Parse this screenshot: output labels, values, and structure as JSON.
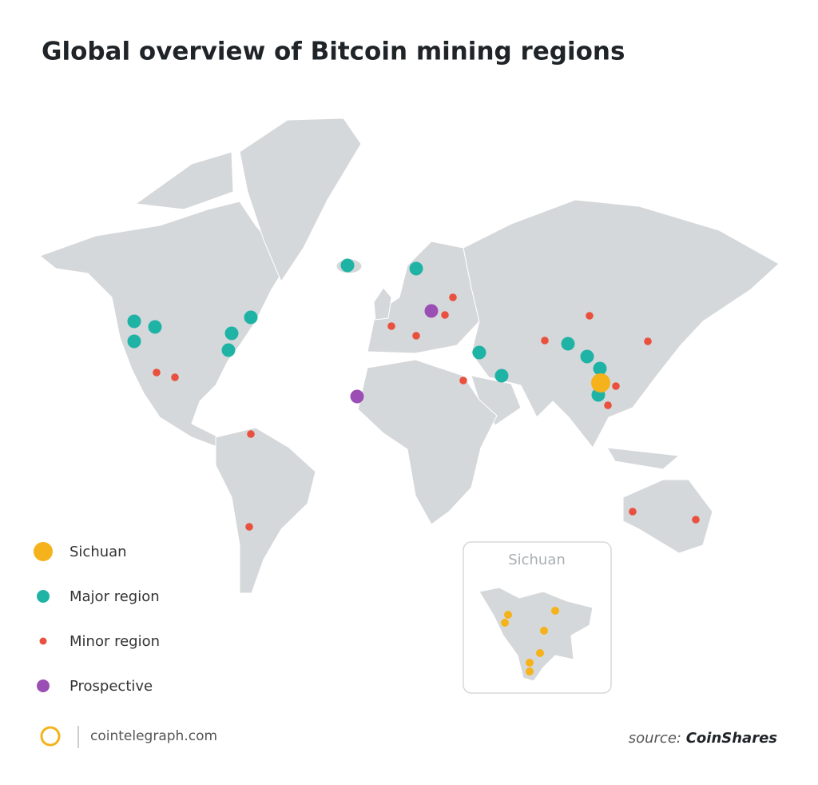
{
  "title": "Global overview of Bitcoin mining regions",
  "legend": [
    {
      "label": "Sichuan",
      "color": "#f5b21b"
    },
    {
      "label": "Major region",
      "color": "#1fb3a6"
    },
    {
      "label": "Minor region",
      "color": "#e9503e"
    },
    {
      "label": "Prospective",
      "color": "#9b4fb4"
    }
  ],
  "inset": {
    "title": "Sichuan"
  },
  "footer": {
    "site": "cointelegraph.com",
    "source_prefix": "source:",
    "source_name": "CoinShares"
  }
}
